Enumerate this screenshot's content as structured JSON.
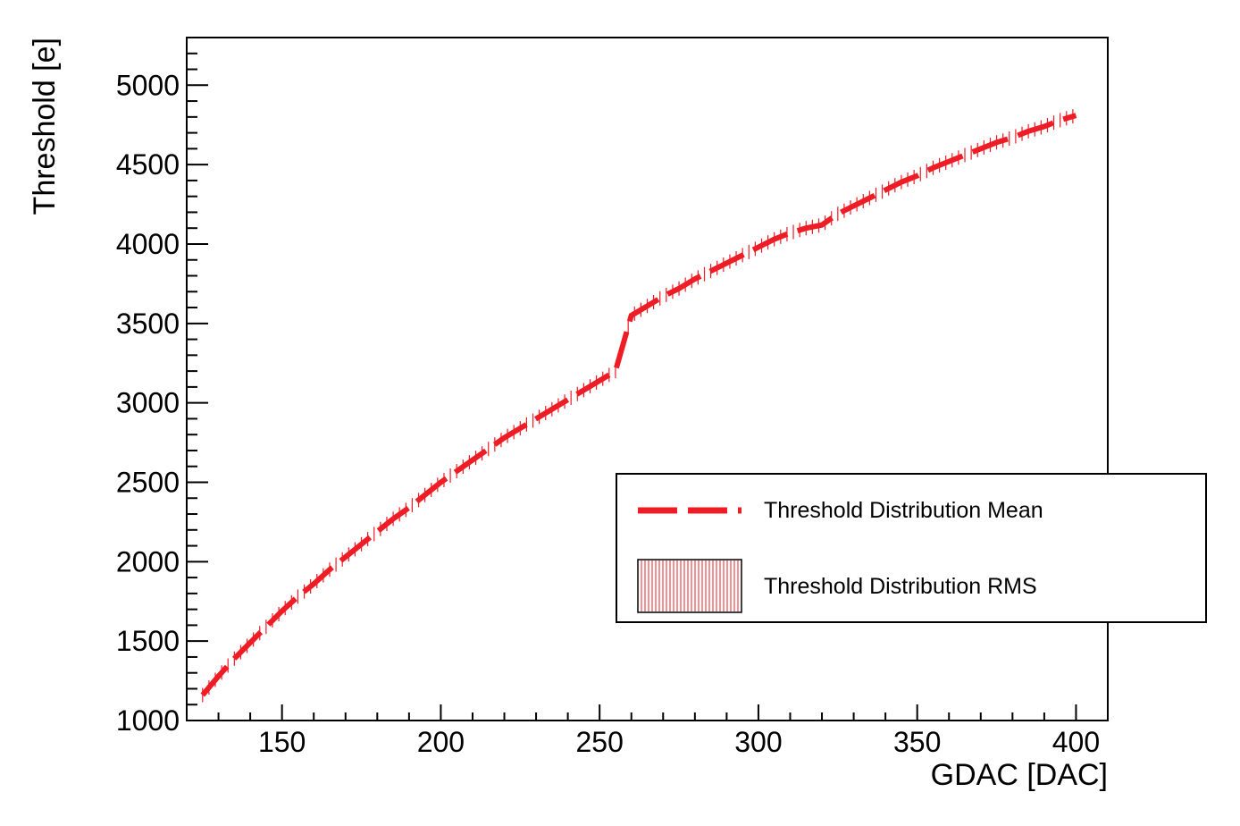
{
  "chart_data": {
    "type": "line",
    "xlabel": "GDAC [DAC]",
    "ylabel": "Threshold [e]",
    "xlim": [
      120,
      410
    ],
    "ylim": [
      1000,
      5300
    ],
    "x_ticks": [
      150,
      200,
      250,
      300,
      350,
      400
    ],
    "x_tick_labels": [
      "150",
      "200",
      "250",
      "300",
      "350",
      "400"
    ],
    "y_ticks": [
      1000,
      1500,
      2000,
      2500,
      3000,
      3500,
      4000,
      4500,
      5000
    ],
    "y_tick_labels": [
      "1000",
      "1500",
      "2000",
      "2500",
      "3000",
      "3500",
      "4000",
      "4500",
      "5000"
    ],
    "grid": false,
    "legend_position": "right",
    "colors": {
      "mean": "#ee1c25",
      "rms": "#ee1c25",
      "frame": "#000000"
    },
    "series": [
      {
        "name": "Threshold Distribution Mean",
        "style": "dashed-line",
        "x": [
          125,
          130,
          135,
          140,
          145,
          150,
          155,
          160,
          165,
          170,
          175,
          180,
          185,
          190,
          195,
          200,
          205,
          210,
          215,
          220,
          225,
          230,
          235,
          240,
          245,
          250,
          255,
          260,
          265,
          270,
          275,
          280,
          285,
          290,
          295,
          300,
          305,
          310,
          315,
          320,
          325,
          330,
          335,
          340,
          345,
          350,
          355,
          360,
          365,
          370,
          375,
          380,
          385,
          390,
          395,
          400
        ],
        "y": [
          1160,
          1280,
          1390,
          1490,
          1590,
          1690,
          1780,
          1860,
          1950,
          2030,
          2110,
          2190,
          2270,
          2340,
          2420,
          2500,
          2570,
          2640,
          2710,
          2780,
          2840,
          2900,
          2960,
          3020,
          3080,
          3140,
          3200,
          3550,
          3610,
          3670,
          3720,
          3780,
          3830,
          3880,
          3930,
          3980,
          4030,
          4070,
          4100,
          4120,
          4190,
          4240,
          4290,
          4340,
          4390,
          4430,
          4480,
          4520,
          4560,
          4600,
          4640,
          4670,
          4710,
          4740,
          4780,
          4810
        ]
      },
      {
        "name": "Threshold Distribution RMS",
        "style": "hatched-band",
        "band_halfwidth": 45
      }
    ]
  }
}
